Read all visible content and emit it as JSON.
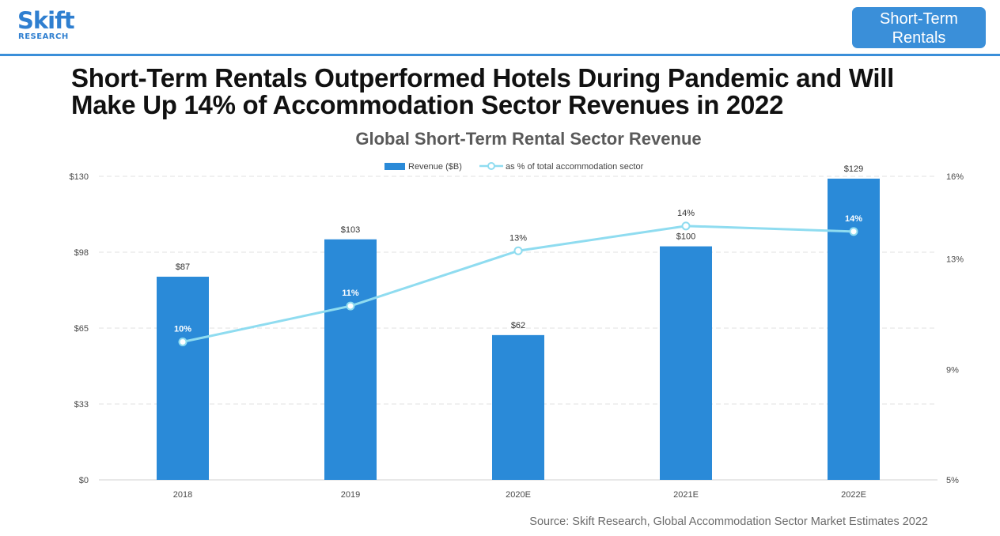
{
  "logo": {
    "word": "Skift",
    "sub": "RESEARCH"
  },
  "tag": {
    "line1": "Short-Term",
    "line2": "Rentals"
  },
  "headline": "Short-Term Rentals Outperformed Hotels During Pandemic and Will Make Up 14% of Accommodation Sector Revenues in 2022",
  "source": "Source: Skift Research, Global Accommodation Sector Market Estimates 2022",
  "colors": {
    "accent": "#3a8fd9",
    "bar": "#2a8ad8",
    "line": "#8fdcf0"
  },
  "chart_data": {
    "type": "bar",
    "title": "Global Short-Term Rental Sector Revenue",
    "categories": [
      "2018",
      "2019",
      "2020E",
      "2021E",
      "2022E"
    ],
    "series": [
      {
        "name": "Revenue ($B)",
        "type": "bar",
        "axis": "left",
        "values": [
          87,
          103,
          62,
          100,
          129
        ],
        "labels": [
          "$87",
          "$103",
          "$62",
          "$100",
          "$129"
        ]
      },
      {
        "name": "as % of total accommodation sector",
        "type": "line",
        "axis": "right",
        "values": [
          10,
          11.3,
          13.3,
          14.2,
          14.0
        ],
        "labels": [
          "10%",
          "11%",
          "13%",
          "14%",
          "14%"
        ]
      }
    ],
    "y_left": {
      "ticks": [
        "$0",
        "$33",
        "$65",
        "$98",
        "$130"
      ],
      "ylim": [
        0,
        130
      ]
    },
    "y_right": {
      "ticks": [
        "5%",
        "9%",
        "13%",
        "16%"
      ],
      "ylim": [
        5,
        16
      ]
    },
    "grid": true,
    "legend_position": "top-center"
  }
}
